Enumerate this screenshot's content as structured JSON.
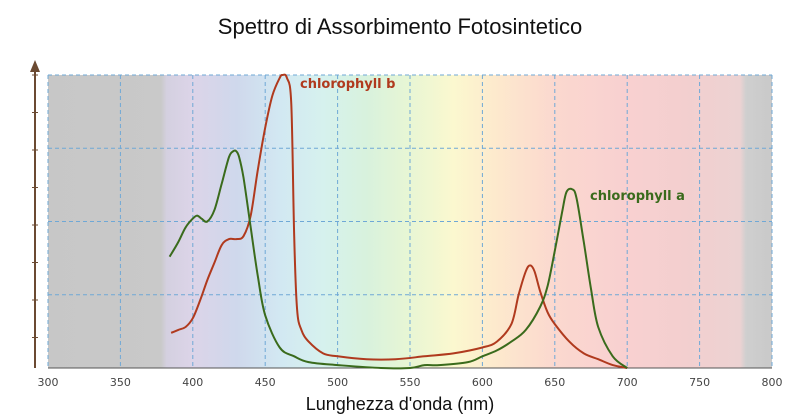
{
  "title": "Spettro di Assorbimento Fotosintetico",
  "chart_data": {
    "type": "line",
    "title": "Spettro di Assorbimento Fotosintetico",
    "xlabel": "Lunghezza d'onda (nm)",
    "ylabel": "",
    "xlim": [
      300,
      800
    ],
    "ylim": [
      0,
      1
    ],
    "x_ticks": [
      300,
      350,
      400,
      450,
      500,
      550,
      600,
      650,
      700,
      750,
      800
    ],
    "grid": true,
    "background": "visible light spectrum gradient (violet to red), gray outside 380-780 nm",
    "series": [
      {
        "name": "chlorophyll b",
        "color": "#b03a1e",
        "x": [
          385,
          390,
          395,
          400,
          405,
          410,
          415,
          420,
          425,
          430,
          435,
          440,
          445,
          450,
          455,
          460,
          462,
          465,
          468,
          470,
          472,
          475,
          480,
          490,
          500,
          520,
          540,
          560,
          580,
          600,
          610,
          620,
          625,
          630,
          633,
          636,
          640,
          645,
          650,
          660,
          670,
          680,
          690,
          700
        ],
        "y": [
          0.12,
          0.13,
          0.14,
          0.17,
          0.23,
          0.3,
          0.36,
          0.42,
          0.44,
          0.44,
          0.45,
          0.52,
          0.68,
          0.82,
          0.93,
          0.99,
          1.0,
          0.99,
          0.9,
          0.45,
          0.2,
          0.13,
          0.09,
          0.05,
          0.04,
          0.03,
          0.03,
          0.04,
          0.05,
          0.07,
          0.09,
          0.15,
          0.25,
          0.33,
          0.35,
          0.33,
          0.26,
          0.19,
          0.15,
          0.09,
          0.05,
          0.03,
          0.01,
          0.0
        ]
      },
      {
        "name": "chlorophyll a",
        "color": "#3a6b1c",
        "x": [
          384,
          390,
          395,
          400,
          403,
          406,
          410,
          415,
          420,
          425,
          428,
          430,
          432,
          435,
          440,
          445,
          450,
          460,
          470,
          480,
          500,
          530,
          550,
          560,
          570,
          590,
          600,
          610,
          620,
          630,
          640,
          645,
          650,
          655,
          658,
          662,
          665,
          670,
          675,
          680,
          690,
          700
        ],
        "y": [
          0.38,
          0.43,
          0.48,
          0.51,
          0.52,
          0.51,
          0.5,
          0.54,
          0.63,
          0.72,
          0.74,
          0.74,
          0.72,
          0.65,
          0.48,
          0.31,
          0.18,
          0.07,
          0.04,
          0.02,
          0.01,
          0.0,
          0.0,
          0.01,
          0.01,
          0.02,
          0.04,
          0.06,
          0.09,
          0.13,
          0.21,
          0.28,
          0.4,
          0.53,
          0.6,
          0.61,
          0.58,
          0.43,
          0.27,
          0.14,
          0.04,
          0.0
        ]
      }
    ]
  }
}
